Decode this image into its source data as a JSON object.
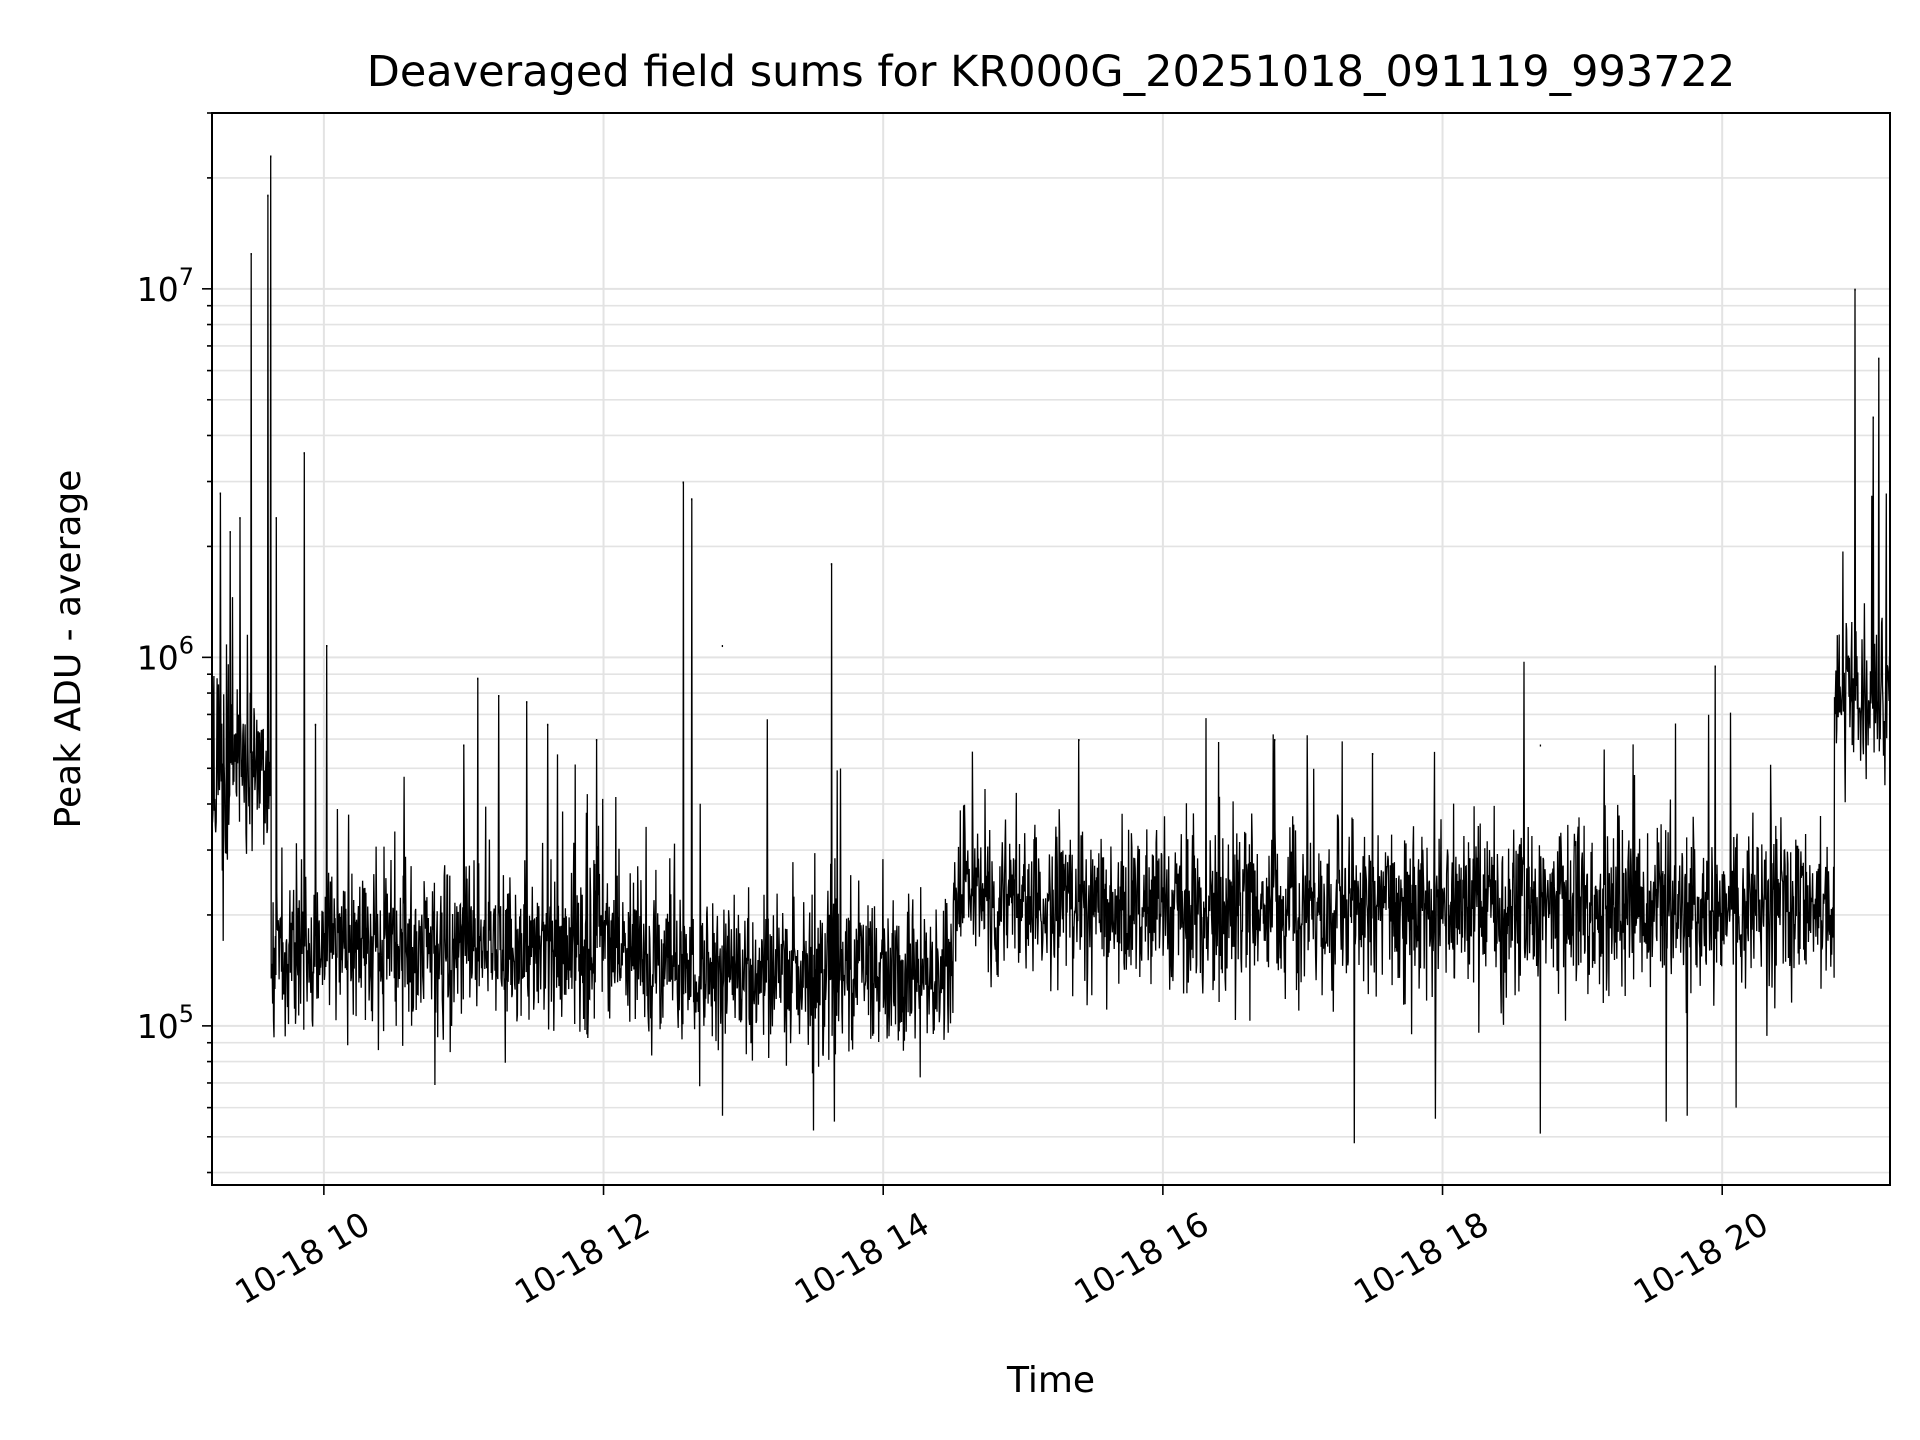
{
  "chart_data": {
    "type": "line",
    "title": "Deaveraged field sums for KR000G_20251018_091119_993722",
    "xlabel": "Time",
    "ylabel": "Peak ADU - average",
    "yscale": "log",
    "ylim": [
      37000,
      30000000
    ],
    "xlim_hours": [
      9.2,
      21.2
    ],
    "x_ticks": [
      {
        "hour": 10,
        "label": "10-18 10"
      },
      {
        "hour": 12,
        "label": "10-18 12"
      },
      {
        "hour": 14,
        "label": "10-18 14"
      },
      {
        "hour": 16,
        "label": "10-18 16"
      },
      {
        "hour": 18,
        "label": "10-18 18"
      },
      {
        "hour": 20,
        "label": "10-18 20"
      }
    ],
    "y_ticks": [
      {
        "value": 100000,
        "base": "10",
        "exp": "5"
      },
      {
        "value": 1000000,
        "base": "10",
        "exp": "6"
      },
      {
        "value": 10000000,
        "base": "10",
        "exp": "7"
      }
    ],
    "grid": true,
    "series": [
      {
        "name": "Peak ADU - average",
        "color": "#000000",
        "baseline_segments": [
          {
            "from_hour": 9.2,
            "to_hour": 9.62,
            "median": 520000,
            "spread": 0.25
          },
          {
            "from_hour": 9.62,
            "to_hour": 10.8,
            "median": 165000,
            "spread": 0.2
          },
          {
            "from_hour": 10.8,
            "to_hour": 12.3,
            "median": 165000,
            "spread": 0.2
          },
          {
            "from_hour": 12.3,
            "to_hour": 14.5,
            "median": 140000,
            "spread": 0.2
          },
          {
            "from_hour": 14.5,
            "to_hour": 15.5,
            "median": 225000,
            "spread": 0.2
          },
          {
            "from_hour": 15.5,
            "to_hour": 20.8,
            "median": 210000,
            "spread": 0.2
          },
          {
            "from_hour": 20.8,
            "to_hour": 21.2,
            "median": 780000,
            "spread": 0.2
          }
        ],
        "spikes": [
          {
            "hour": 9.26,
            "value": 2800000
          },
          {
            "hour": 9.33,
            "value": 2200000
          },
          {
            "hour": 9.4,
            "value": 2400000
          },
          {
            "hour": 9.48,
            "value": 12500000
          },
          {
            "hour": 9.6,
            "value": 18000000
          },
          {
            "hour": 9.62,
            "value": 23000000
          },
          {
            "hour": 9.66,
            "value": 2400000
          },
          {
            "hour": 9.86,
            "value": 3600000
          },
          {
            "hour": 9.94,
            "value": 660000
          },
          {
            "hour": 10.02,
            "value": 1080000
          },
          {
            "hour": 11.0,
            "value": 580000
          },
          {
            "hour": 11.1,
            "value": 880000
          },
          {
            "hour": 11.25,
            "value": 790000
          },
          {
            "hour": 11.45,
            "value": 760000
          },
          {
            "hour": 11.6,
            "value": 660000
          },
          {
            "hour": 11.95,
            "value": 600000
          },
          {
            "hour": 12.57,
            "value": 3000000
          },
          {
            "hour": 12.63,
            "value": 2700000
          },
          {
            "hour": 12.85,
            "value": 1080000
          },
          {
            "hour": 13.63,
            "value": 1800000
          },
          {
            "hour": 15.4,
            "value": 600000
          },
          {
            "hour": 16.8,
            "value": 600000
          },
          {
            "hour": 17.5,
            "value": 550000
          },
          {
            "hour": 18.7,
            "value": 580000
          },
          {
            "hour": 19.95,
            "value": 950000
          },
          {
            "hour": 20.95,
            "value": 10000000
          },
          {
            "hour": 21.08,
            "value": 4500000
          },
          {
            "hour": 21.12,
            "value": 6500000
          }
        ],
        "dips": [
          {
            "hour": 9.28,
            "value": 170000
          },
          {
            "hour": 13.5,
            "value": 52000
          },
          {
            "hour": 13.65,
            "value": 55000
          },
          {
            "hour": 12.85,
            "value": 57000
          },
          {
            "hour": 17.37,
            "value": 48000
          },
          {
            "hour": 18.7,
            "value": 51000
          },
          {
            "hour": 19.6,
            "value": 55000
          },
          {
            "hour": 17.95,
            "value": 56000
          },
          {
            "hour": 19.75,
            "value": 57000
          },
          {
            "hour": 20.1,
            "value": 60000
          }
        ]
      }
    ]
  }
}
